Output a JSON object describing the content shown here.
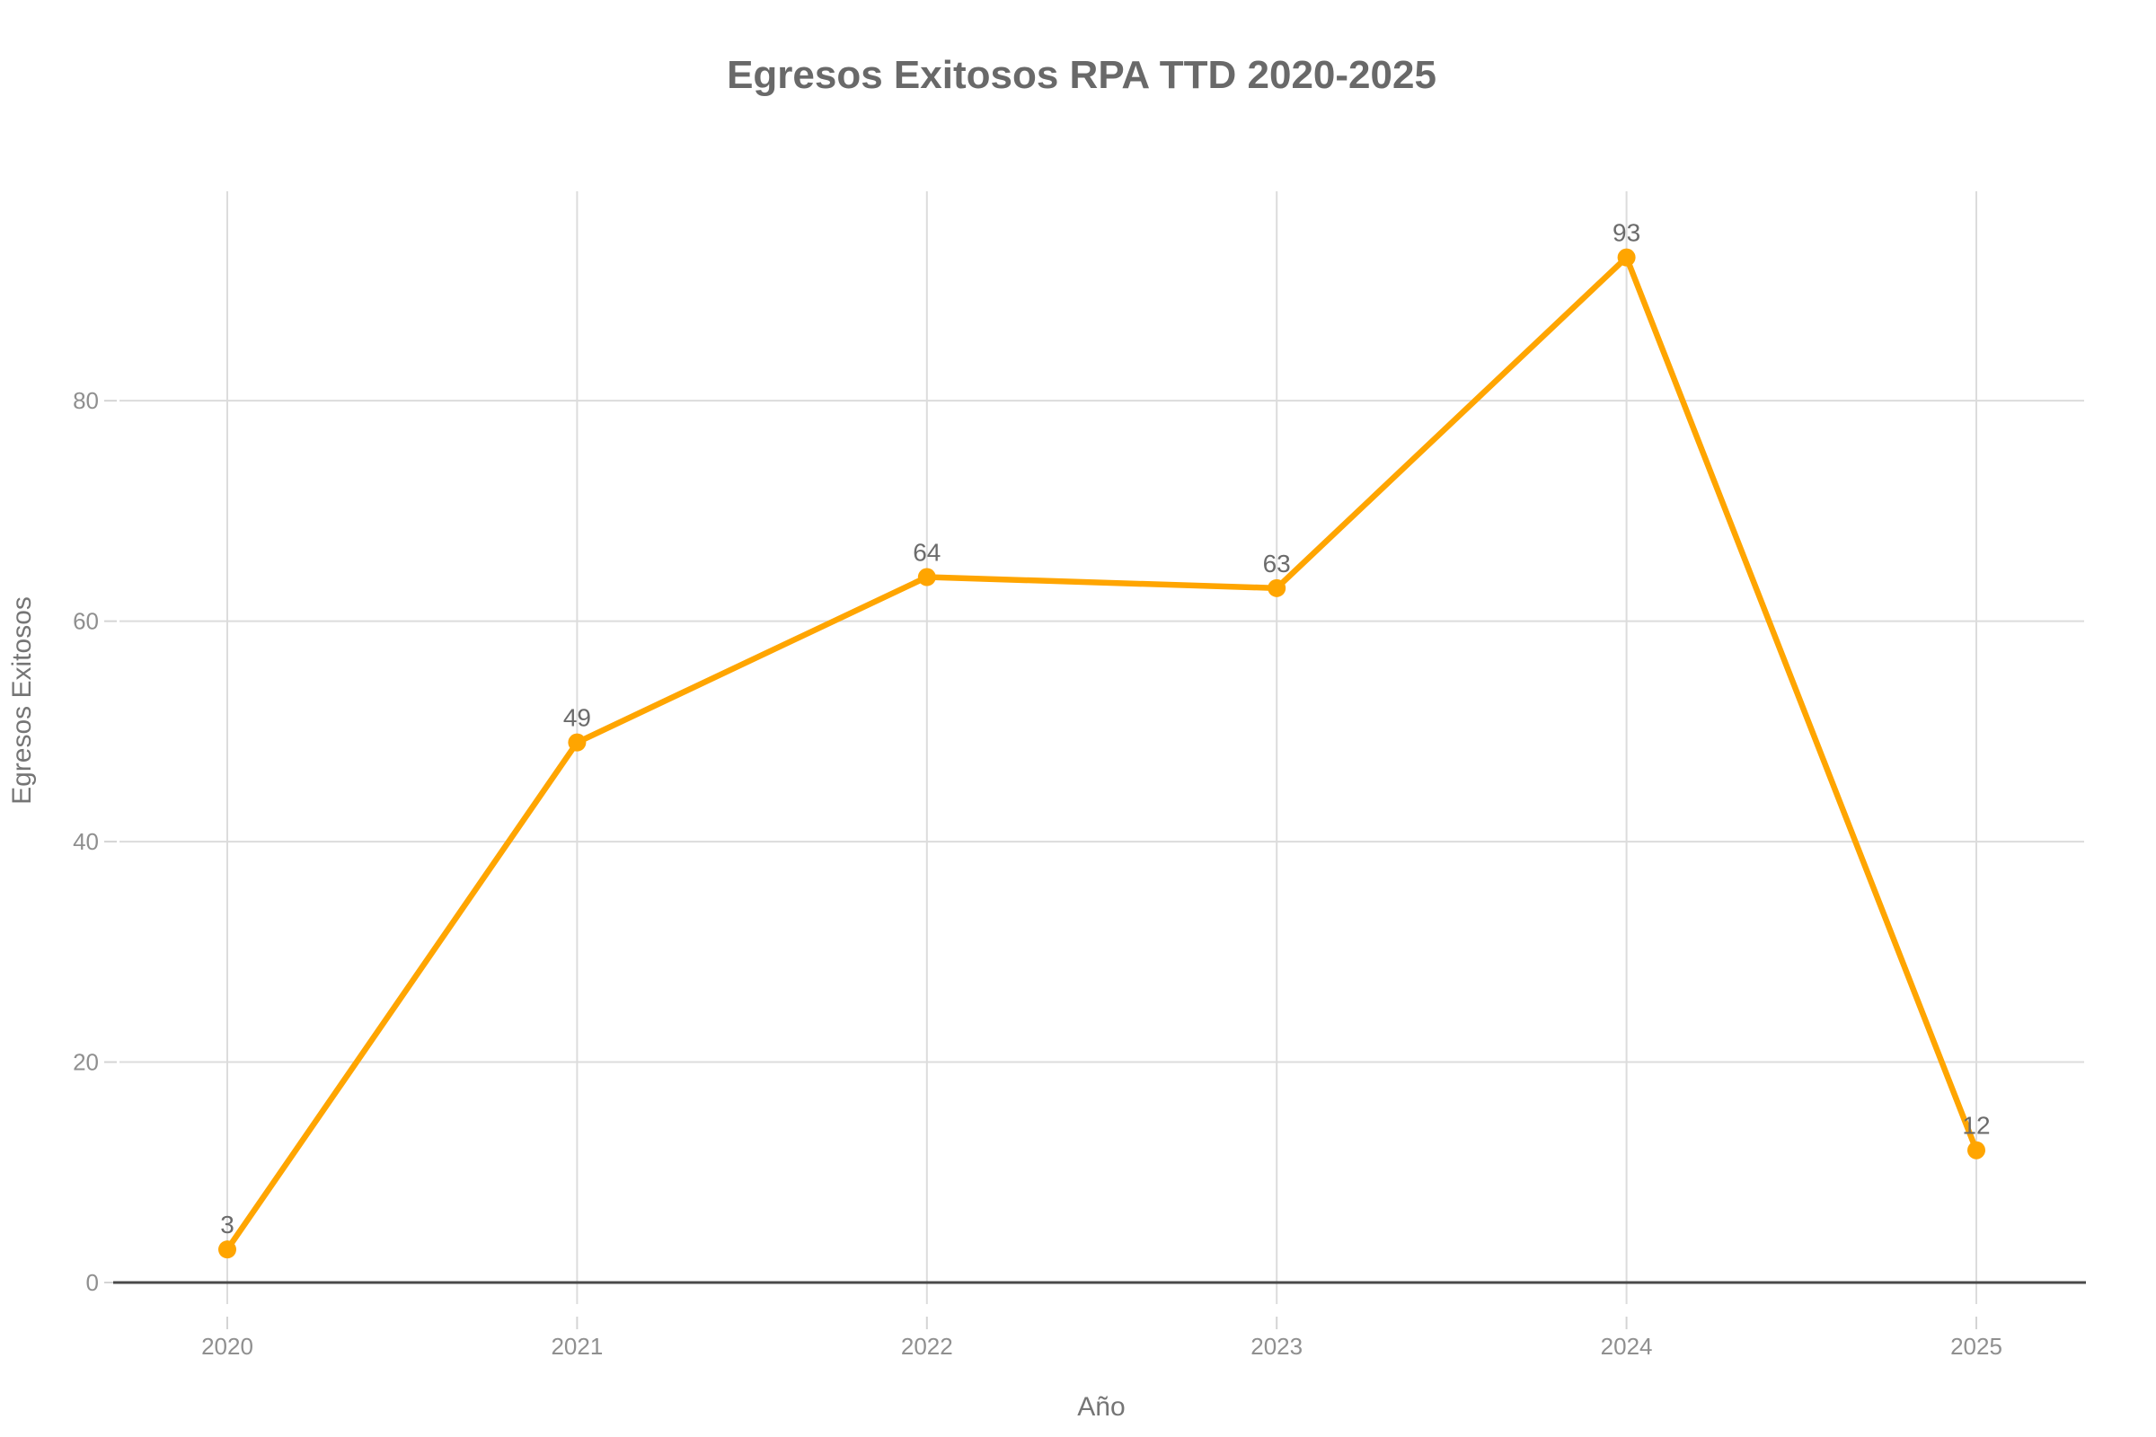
{
  "chart_data": {
    "type": "line",
    "title": "Egresos Exitosos RPA TTD 2020-2025",
    "xlabel": "Año",
    "ylabel": "Egresos Exitosos",
    "categories": [
      "2020",
      "2021",
      "2022",
      "2023",
      "2024",
      "2025"
    ],
    "values": [
      3,
      49,
      64,
      63,
      93,
      12
    ],
    "data_labels": [
      "3",
      "49",
      "64",
      "63",
      "93",
      "12"
    ],
    "yticks": [
      0,
      20,
      40,
      60,
      80
    ],
    "ylim": [
      0,
      99
    ],
    "grid": true,
    "legend": false,
    "line_color": "#FFA500",
    "marker_color": "#FFA500",
    "background_color": "#ffffff"
  }
}
